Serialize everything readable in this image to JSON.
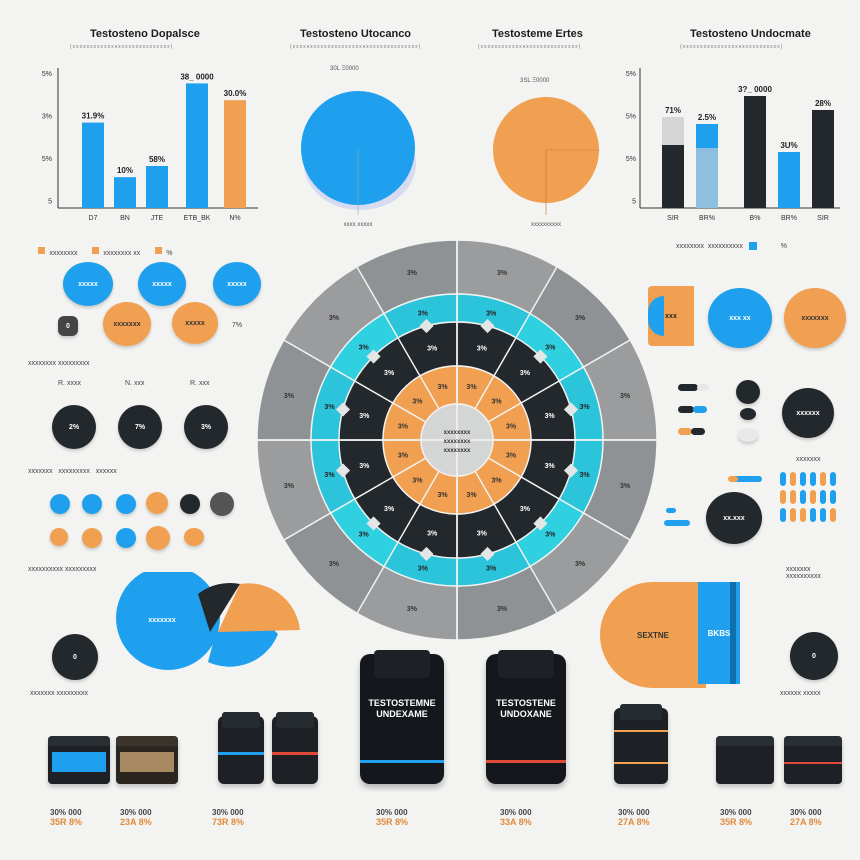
{
  "colors": {
    "blue": "#1ea0ee",
    "cyan": "#2bc4da",
    "orange": "#f0a050",
    "dark": "#23282d",
    "gray": "#8f9294",
    "lightgray": "#d4d6d6"
  },
  "headers": {
    "h1": {
      "title": "Testosteno Dopalsce",
      "sub": "(xxxxxxxxxxxxxxxxxxxxxxxxxxxx)"
    },
    "h2": {
      "title": "Testosteno Utocanco",
      "sub": "(xxxxxxxxxxxxxxxxxxxxxxxxxxxxxxxxxxxx)"
    },
    "h3": {
      "title": "Testosteme Ertes",
      "sub": "(xxxxxxxxxxxxxxxxxxxxxxxxxxxx)"
    },
    "h4": {
      "title": "Testosteno Undocmate",
      "sub": "(xxxxxxxxxxxxxxxxxxxxxxxxxxxx)"
    }
  },
  "chart_data": [
    {
      "type": "bar",
      "title": "Testosteno Dopalsce",
      "categories": [
        "D7",
        "BN",
        "JTE",
        "ETB_BK",
        "N%"
      ],
      "values": [
        61,
        22,
        30,
        89,
        77
      ],
      "value_labels": [
        "31.9%",
        "10%",
        "58%",
        "38_ 0000",
        "30.0%"
      ],
      "ytick_labels": [
        "5%",
        "3%",
        "5%",
        "5"
      ],
      "ylim": [
        0,
        100
      ]
    },
    {
      "type": "pie",
      "title": "Testosteno Utocanco",
      "labels": [
        "xxxx xxxxx"
      ],
      "values": [
        100
      ]
    },
    {
      "type": "pie",
      "title": "Testosteme Ertes",
      "labels": [
        "xxxxxxxxxx"
      ],
      "values": [
        100
      ]
    },
    {
      "type": "bar",
      "title": "Testosteno Undocmate",
      "categories": [
        "SIR",
        "BR%",
        "B%",
        "BR%",
        "SIR"
      ],
      "series": [
        {
          "name": "dark",
          "values": [
            45,
            0,
            80,
            0,
            70
          ]
        },
        {
          "name": "light",
          "values": [
            20,
            60,
            0,
            40,
            0
          ]
        }
      ],
      "value_labels": [
        "71%",
        "2.5%",
        "3?_ 0000",
        "3U%",
        "28%"
      ],
      "ytick_labels": [
        "5%",
        "5%",
        "5%",
        "5"
      ],
      "ylim": [
        0,
        100
      ]
    },
    {
      "type": "pie",
      "title": "",
      "labels": [
        "3%",
        "3%",
        "3%",
        "3%",
        "3%",
        "3%",
        "3%",
        "3%",
        "3%",
        "3%",
        "3%",
        "3%"
      ],
      "values": [
        1,
        1,
        1,
        1,
        1,
        1,
        1,
        1,
        1,
        1,
        1,
        1
      ],
      "rings": [
        "gray",
        "cyan",
        "dark",
        "orange",
        "lightgray"
      ],
      "center_label": "xxxxxxxx xxxxxxxx xxxxxxxx"
    }
  ],
  "left_panel": {
    "legend": [
      "xxxxxxxx",
      "xxxxxxxx xx",
      "%"
    ],
    "circles_row1": [
      "xxxxx",
      "xxxxx",
      "xxxxx"
    ],
    "circles_row2": [
      "0",
      "xxxxxxx",
      "xxxxx",
      "7%"
    ],
    "section2_label": "xxxxxxxx xxxxxxxxx",
    "dark_circles": [
      {
        "top": "R. xxxx",
        "value": "2%"
      },
      {
        "top": "N. xxx",
        "value": "7%"
      },
      {
        "top": "R. xxx",
        "value": "3%"
      }
    ],
    "legend2": [
      "xxxxxxx",
      "xxxxxxxxx",
      "xxxxxx"
    ],
    "caption": "xxxxxxxxxx xxxxxxxxx",
    "pie_label": "xxxxxxx",
    "dark_circle": "0",
    "bottom_caption": "xxxxxxx xxxxxxxxx"
  },
  "right_panel": {
    "legend": [
      "xxxxxxxx",
      "xxxxxxxxxx",
      "%"
    ],
    "shapes": [
      "xxx",
      "xxx xx",
      "xxxxxxx"
    ],
    "dark_circle_label": "xxxxxx",
    "small_label": "xxxxxxx",
    "mid_dark": "xx.xxx",
    "caption": "xxxxxxx xxxxxxxxxx",
    "block_orange": "SEXTNE",
    "block_blue": "BKBS",
    "dark_circle2": "0",
    "bottom_caption": "xxxxxx xxxxx"
  },
  "bottles": {
    "big1_label": "TESTOSTEMNE UNDEXAME",
    "big2_label": "TESTOSTENE UNDOXANE",
    "prices": [
      {
        "a": "30% 000",
        "b": "35R 8%"
      },
      {
        "a": "30% 000",
        "b": "23A 8%"
      },
      {
        "a": "30% 000",
        "b": "73R 8%"
      },
      {
        "a": "30% 000",
        "b": "35R 8%"
      },
      {
        "a": "30% 000",
        "b": "33A 8%"
      },
      {
        "a": "30% 000",
        "b": "27A 8%"
      },
      {
        "a": "30% 000",
        "b": "35R 8%"
      },
      {
        "a": "30% 000",
        "b": "27A 8%"
      }
    ]
  }
}
